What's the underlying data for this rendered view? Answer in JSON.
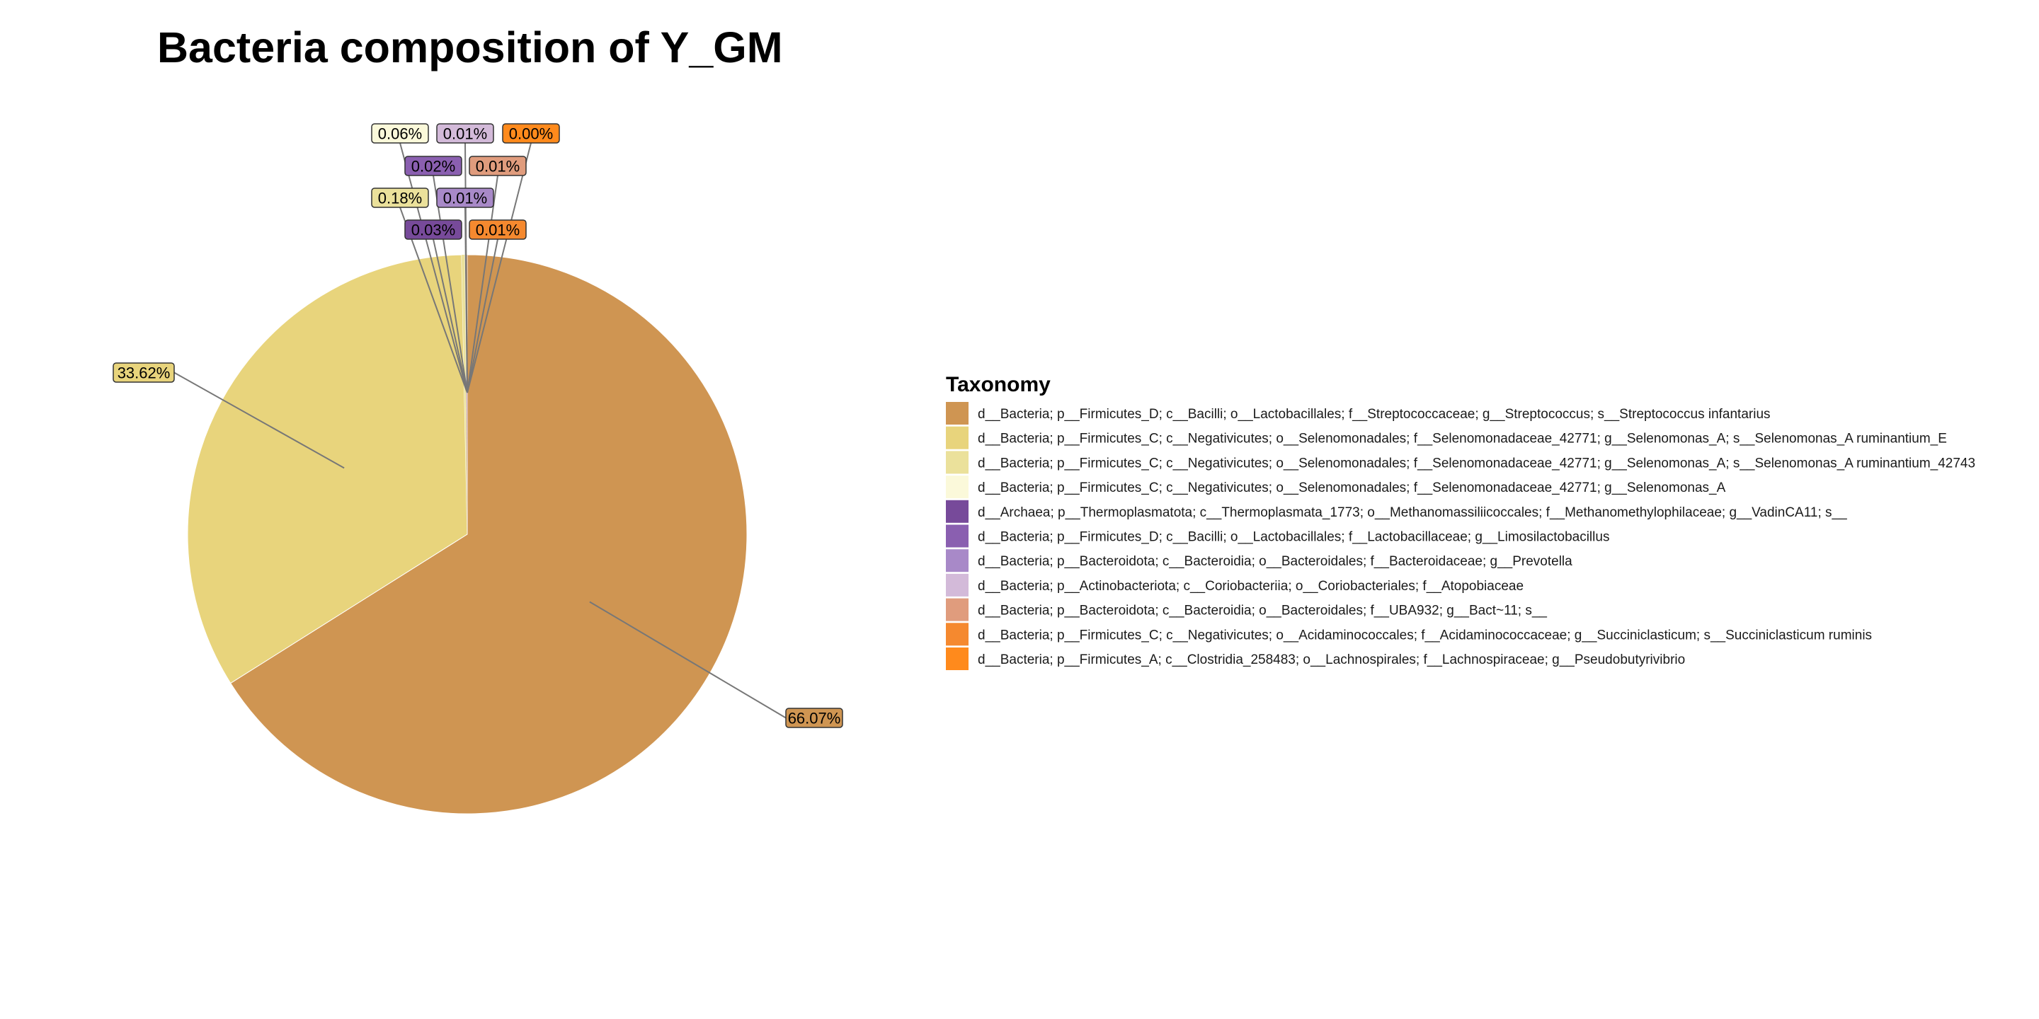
{
  "chart_data": {
    "type": "pie",
    "title": "Bacteria composition of Y_GM",
    "legend_title": "Taxonomy",
    "legend_position": "right",
    "start_angle_deg": 0,
    "direction": "clockwise",
    "slices": [
      {
        "label": "d__Bacteria; p__Firmicutes_D; c__Bacilli; o__Lactobacillales; f__Streptococcaceae; g__Streptococcus; s__Streptococcus infantarius",
        "value": 66.07,
        "display": "66.07%",
        "color": "#CF9552"
      },
      {
        "label": "d__Bacteria; p__Firmicutes_C; c__Negativicutes; o__Selenomonadales; f__Selenomonadaceae_42771; g__Selenomonas_A; s__Selenomonas_A ruminantium_E",
        "value": 33.62,
        "display": "33.62%",
        "color": "#E8D47C"
      },
      {
        "label": "d__Bacteria; p__Firmicutes_C; c__Negativicutes; o__Selenomonadales; f__Selenomonadaceae_42771; g__Selenomonas_A; s__Selenomonas_A ruminantium_42743",
        "value": 0.18,
        "display": "0.18%",
        "color": "#EBE19B"
      },
      {
        "label": "d__Bacteria; p__Firmicutes_C; c__Negativicutes; o__Selenomonadales; f__Selenomonadaceae_42771; g__Selenomonas_A",
        "value": 0.06,
        "display": "0.06%",
        "color": "#FBF9DA"
      },
      {
        "label": "d__Archaea; p__Thermoplasmatota; c__Thermoplasmata_1773; o__Methanomassiliicoccales; f__Methanomethylophilaceae; g__VadinCA11; s__",
        "value": 0.03,
        "display": "0.03%",
        "color": "#774A9A"
      },
      {
        "label": "d__Bacteria; p__Firmicutes_D; c__Bacilli; o__Lactobacillales; f__Lactobacillaceae; g__Limosilactobacillus",
        "value": 0.02,
        "display": "0.02%",
        "color": "#8A5FB0"
      },
      {
        "label": "d__Bacteria; p__Bacteroidota; c__Bacteroidia; o__Bacteroidales; f__Bacteroidaceae; g__Prevotella",
        "value": 0.01,
        "display": "0.01%",
        "color": "#A889C8"
      },
      {
        "label": "d__Bacteria; p__Actinobacteriota; c__Coriobacteriia; o__Coriobacteriales; f__Atopobiaceae",
        "value": 0.01,
        "display": "0.01%",
        "color": "#D3BAD9"
      },
      {
        "label": "d__Bacteria; p__Bacteroidota; c__Bacteroidia; o__Bacteroidales; f__UBA932; g__Bact~11; s__",
        "value": 0.01,
        "display": "0.01%",
        "color": "#E09C7D"
      },
      {
        "label": "d__Bacteria; p__Firmicutes_C; c__Negativicutes; o__Acidaminococcales; f__Acidaminococcaceae; g__Succiniclasticum; s__Succiniclasticum ruminis",
        "value": 0.01,
        "display": "0.01%",
        "color": "#F5892F"
      },
      {
        "label": "d__Bacteria; p__Firmicutes_A; c__Clostridia_258483; o__Lachnospirales; f__Lachnospiraceae; g__Pseudobutyrivibrio",
        "value": 0.0,
        "display": "0.00%",
        "color": "#FF8A1C"
      }
    ]
  }
}
